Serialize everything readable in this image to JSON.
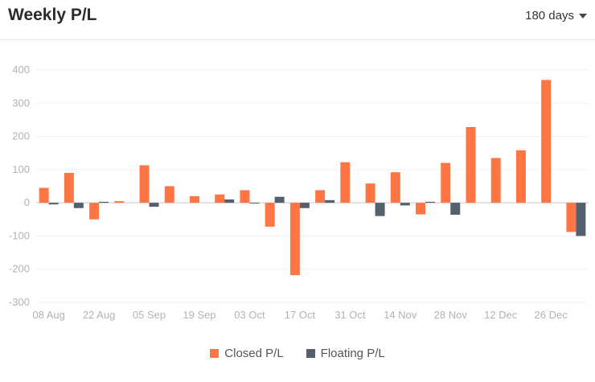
{
  "header": {
    "title": "Weekly P/L",
    "range_label": "180 days"
  },
  "colors": {
    "closed": "#ff7644",
    "floating": "#55606f"
  },
  "chart_data": {
    "type": "bar",
    "title": "Weekly P/L",
    "xlabel": "",
    "ylabel": "",
    "ylim": [
      -300,
      400
    ],
    "yticks": [
      -300,
      -200,
      -100,
      0,
      100,
      200,
      300,
      400
    ],
    "grid": true,
    "legend_position": "bottom",
    "x_tick_labels": [
      "08 Aug",
      "22 Aug",
      "05 Sep",
      "19 Sep",
      "03 Oct",
      "17 Oct",
      "31 Oct",
      "14 Nov",
      "28 Nov",
      "12 Dec",
      "26 Dec"
    ],
    "series": [
      {
        "name": "Closed P/L",
        "values": [
          45,
          90,
          -50,
          5,
          113,
          50,
          20,
          25,
          38,
          -72,
          -218,
          38,
          122,
          58,
          92,
          -35,
          120,
          228,
          135,
          158,
          370,
          -88
        ]
      },
      {
        "name": "Floating P/L",
        "values": [
          -5,
          -16,
          3,
          0,
          -12,
          0,
          0,
          10,
          -2,
          18,
          -16,
          8,
          0,
          -40,
          -8,
          3,
          -36,
          0,
          0,
          0,
          0,
          -100
        ]
      }
    ]
  }
}
